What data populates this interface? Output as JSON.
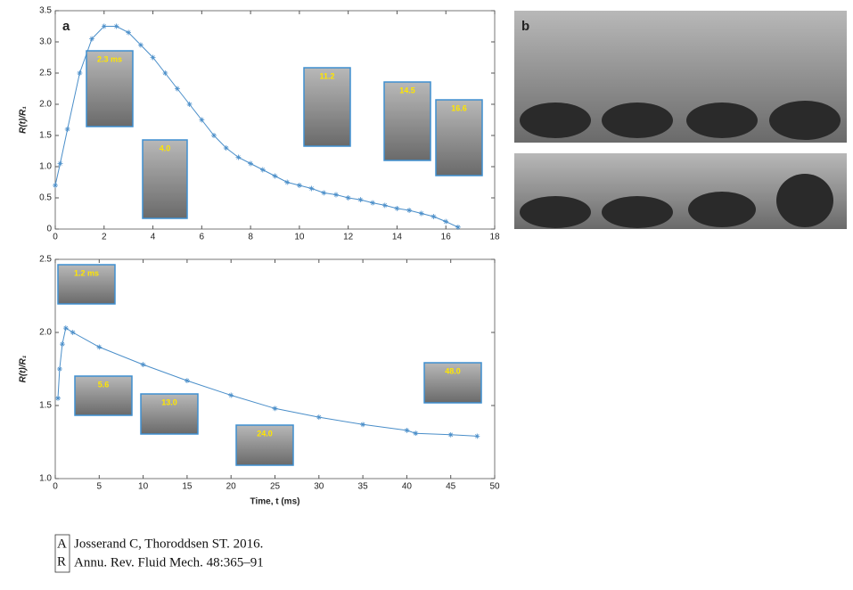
{
  "chart_data": [
    {
      "type": "line",
      "y_label": "R(t)/R₁",
      "annotations": [
        "2.3 ms",
        "4.0",
        "11.2",
        "14.5",
        "16.6"
      ],
      "x": [
        0,
        0.2,
        0.5,
        1,
        1.5,
        2,
        2.5,
        3,
        3.5,
        4,
        4.5,
        5,
        5.5,
        6,
        6.5,
        7,
        7.5,
        8,
        8.5,
        9,
        9.5,
        10,
        10.5,
        11,
        11.5,
        12,
        12.5,
        13,
        13.5,
        14,
        14.5,
        15,
        15.5,
        16,
        16.5
      ],
      "values": [
        0.7,
        1.05,
        1.6,
        2.5,
        3.05,
        3.25,
        3.25,
        3.15,
        2.95,
        2.75,
        2.5,
        2.25,
        2.0,
        1.75,
        1.5,
        1.3,
        1.15,
        1.05,
        0.95,
        0.85,
        0.75,
        0.7,
        0.65,
        0.58,
        0.55,
        0.5,
        0.47,
        0.42,
        0.38,
        0.33,
        0.3,
        0.25,
        0.2,
        0.12,
        0.03
      ],
      "color": "#4a8ec9",
      "xlim": [
        0,
        18
      ],
      "xticks": [
        0,
        2,
        4,
        6,
        8,
        10,
        12,
        14,
        16,
        18
      ],
      "ylim": [
        0,
        3.5
      ],
      "yticks": [
        0,
        0.5,
        {
          "value": 1,
          "label": "1.0"
        },
        1.5,
        {
          "value": 2,
          "label": "2.0"
        },
        2.5,
        {
          "value": 3,
          "label": "3.0"
        },
        3.5
      ]
    },
    {
      "type": "line",
      "y_label": "R(t)/R₁",
      "x_label": "Time, t (ms)",
      "annotations": [
        "1.2 ms",
        "5.6",
        "13.0",
        "24.0",
        "48.0"
      ],
      "x": [
        0.3,
        0.5,
        0.8,
        1.2,
        2,
        5,
        10,
        15,
        20,
        25,
        30,
        35,
        40,
        41,
        45,
        48
      ],
      "values": [
        1.55,
        1.75,
        1.92,
        2.03,
        2.0,
        1.9,
        1.78,
        1.67,
        1.57,
        1.48,
        1.42,
        1.37,
        1.33,
        1.31,
        1.3,
        1.29
      ],
      "color": "#4a8ec9",
      "xlim": [
        0,
        50
      ],
      "xticks": [
        0,
        5,
        10,
        15,
        20,
        25,
        30,
        35,
        40,
        45,
        50
      ],
      "ylim": [
        1,
        2.5
      ],
      "yticks": [
        {
          "value": 1,
          "label": "1.0"
        },
        1.5,
        {
          "value": 2,
          "label": "2.0"
        },
        2.5
      ]
    }
  ],
  "panel_labels": [
    "a",
    "b"
  ],
  "logo": [
    "A",
    "R"
  ],
  "citation": [
    "Josserand C, Thoroddsen ST. 2016.",
    "Annu. Rev. Fluid Mech. 48:365–91"
  ]
}
